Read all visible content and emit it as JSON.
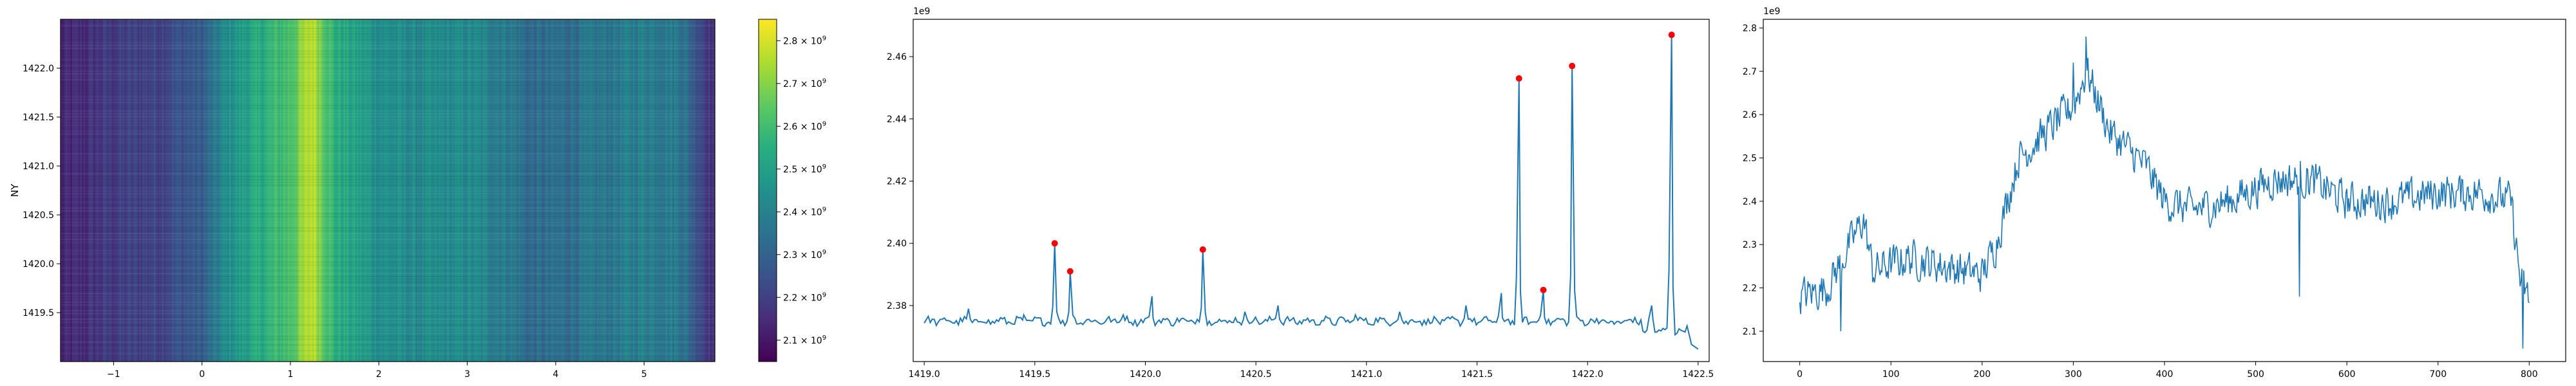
{
  "chart_data": [
    {
      "type": "heatmap",
      "ylabel": "NY",
      "xlim": [
        -1.6,
        5.8
      ],
      "ylim": [
        1419.0,
        1422.5
      ],
      "xticks": [
        "−1",
        "0",
        "1",
        "2",
        "3",
        "4",
        "5"
      ],
      "xtick_values": [
        -1,
        0,
        1,
        2,
        3,
        4,
        5
      ],
      "yticks": [
        "1419.5",
        "1420.0",
        "1420.5",
        "1421.0",
        "1421.5",
        "1422.0"
      ],
      "ytick_values": [
        1419.5,
        1420.0,
        1420.5,
        1421.0,
        1421.5,
        1422.0
      ],
      "colormap": "viridis",
      "colorbar": {
        "range": [
          2050000000.0,
          2850000000.0
        ],
        "ticks": [
          2100000000.0,
          2200000000.0,
          2300000000.0,
          2400000000.0,
          2500000000.0,
          2600000000.0,
          2700000000.0,
          2800000000.0
        ],
        "tick_mantissas": [
          "2.1",
          "2.2",
          "2.3",
          "2.4",
          "2.5",
          "2.6",
          "2.7",
          "2.8"
        ],
        "tick_base": "× 10",
        "tick_exponent": "9"
      },
      "column_profile_keypoints": [
        [
          -1.6,
          2120000000.0
        ],
        [
          -1.1,
          2180000000.0
        ],
        [
          -0.5,
          2220000000.0
        ],
        [
          0.0,
          2280000000.0
        ],
        [
          0.3,
          2450000000.0
        ],
        [
          0.7,
          2550000000.0
        ],
        [
          1.0,
          2620000000.0
        ],
        [
          1.25,
          2780000000.0
        ],
        [
          1.5,
          2550000000.0
        ],
        [
          2.0,
          2450000000.0
        ],
        [
          2.5,
          2420000000.0
        ],
        [
          3.0,
          2430000000.0
        ],
        [
          3.5,
          2380000000.0
        ],
        [
          3.7,
          2320000000.0
        ],
        [
          4.5,
          2360000000.0
        ],
        [
          5.0,
          2400000000.0
        ],
        [
          5.4,
          2380000000.0
        ],
        [
          5.8,
          2150000000.0
        ]
      ]
    },
    {
      "type": "line",
      "xlim": [
        1418.95,
        1422.55
      ],
      "ylim": [
        2362000000.0,
        2472000000.0
      ],
      "xticks": [
        "1419.0",
        "1419.5",
        "1420.0",
        "1420.5",
        "1421.0",
        "1421.5",
        "1422.0",
        "1422.5"
      ],
      "xtick_values": [
        1419.0,
        1419.5,
        1420.0,
        1420.5,
        1421.0,
        1421.5,
        1422.0,
        1422.5
      ],
      "yticks": [
        "2.38",
        "2.40",
        "2.42",
        "2.44",
        "2.46"
      ],
      "ytick_values": [
        2380000000.0,
        2400000000.0,
        2420000000.0,
        2440000000.0,
        2460000000.0
      ],
      "offset_label": "1e9",
      "x_range": [
        1419.0,
        1422.5
      ],
      "baseline": 2375000000.0,
      "peaks": [
        {
          "x": 1419.59,
          "y": 2400000000.0
        },
        {
          "x": 1419.66,
          "y": 2391000000.0
        },
        {
          "x": 1420.26,
          "y": 2398000000.0
        },
        {
          "x": 1421.69,
          "y": 2453000000.0
        },
        {
          "x": 1421.8,
          "y": 2385000000.0
        },
        {
          "x": 1421.93,
          "y": 2457000000.0
        },
        {
          "x": 1422.38,
          "y": 2467000000.0
        }
      ],
      "minor_bumps": [
        {
          "x": 1419.2,
          "y": 2379000000.0
        },
        {
          "x": 1419.45,
          "y": 2377000000.0
        },
        {
          "x": 1419.9,
          "y": 2377000000.0
        },
        {
          "x": 1420.03,
          "y": 2383000000.0
        },
        {
          "x": 1420.45,
          "y": 2378000000.0
        },
        {
          "x": 1420.6,
          "y": 2380000000.0
        },
        {
          "x": 1420.95,
          "y": 2377000000.0
        },
        {
          "x": 1421.15,
          "y": 2378000000.0
        },
        {
          "x": 1421.45,
          "y": 2380000000.0
        },
        {
          "x": 1421.61,
          "y": 2384000000.0
        },
        {
          "x": 1422.12,
          "y": 2374000000.0
        },
        {
          "x": 1422.29,
          "y": 2380000000.0
        }
      ],
      "end": {
        "x": 1422.5,
        "y": 2366000000.0
      },
      "line_color": "#1f77b4",
      "marker_color": "#ff0000"
    },
    {
      "type": "line",
      "xlim": [
        -40,
        840
      ],
      "ylim": [
        2030000000.0,
        2820000000.0
      ],
      "xticks": [
        "0",
        "100",
        "200",
        "300",
        "400",
        "500",
        "600",
        "700",
        "800"
      ],
      "xtick_values": [
        0,
        100,
        200,
        300,
        400,
        500,
        600,
        700,
        800
      ],
      "yticks": [
        "2.1",
        "2.2",
        "2.3",
        "2.4",
        "2.5",
        "2.6",
        "2.7",
        "2.8"
      ],
      "ytick_values": [
        2100000000.0,
        2200000000.0,
        2300000000.0,
        2400000000.0,
        2500000000.0,
        2600000000.0,
        2700000000.0,
        2800000000.0
      ],
      "offset_label": "1e9",
      "n_points": 801,
      "trend_keypoints": [
        [
          0,
          2180000000.0
        ],
        [
          30,
          2200000000.0
        ],
        [
          55,
          2300000000.0
        ],
        [
          70,
          2360000000.0
        ],
        [
          80,
          2240000000.0
        ],
        [
          120,
          2270000000.0
        ],
        [
          160,
          2250000000.0
        ],
        [
          200,
          2230000000.0
        ],
        [
          215,
          2300000000.0
        ],
        [
          240,
          2500000000.0
        ],
        [
          270,
          2560000000.0
        ],
        [
          300,
          2620000000.0
        ],
        [
          315,
          2700000000.0
        ],
        [
          340,
          2560000000.0
        ],
        [
          380,
          2480000000.0
        ],
        [
          400,
          2400000000.0
        ],
        [
          430,
          2380000000.0
        ],
        [
          470,
          2400000000.0
        ],
        [
          520,
          2450000000.0
        ],
        [
          560,
          2450000000.0
        ],
        [
          600,
          2400000000.0
        ],
        [
          650,
          2400000000.0
        ],
        [
          700,
          2420000000.0
        ],
        [
          750,
          2420000000.0
        ],
        [
          780,
          2400000000.0
        ],
        [
          790,
          2220000000.0
        ],
        [
          800,
          2170000000.0
        ]
      ],
      "noise_amplitude": 60000000.0,
      "notable_points": [
        {
          "x": 314,
          "y": 2780000000.0
        },
        {
          "x": 300,
          "y": 2720000000.0
        },
        {
          "x": 45,
          "y": 2100000000.0
        },
        {
          "x": 548,
          "y": 2180000000.0
        },
        {
          "x": 793,
          "y": 2060000000.0
        }
      ],
      "line_color": "#1f77b4"
    }
  ]
}
